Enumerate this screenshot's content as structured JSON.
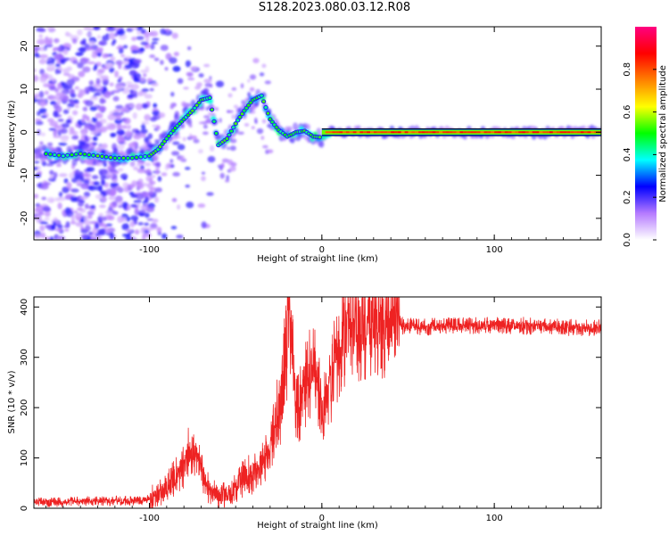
{
  "title": "S128.2023.080.03.12.R08",
  "chart_data": [
    {
      "type": "heatmap",
      "xlabel": "Height of straight line (km)",
      "ylabel": "Frequency (Hz)",
      "xlim": [
        -167,
        162
      ],
      "ylim": [
        -25,
        24.5
      ],
      "x_ticks": [
        -100,
        0,
        100
      ],
      "x_tick_labels": [
        "-100",
        "0",
        "100"
      ],
      "y_ticks": [
        -20,
        -10,
        0,
        10,
        20
      ],
      "y_tick_labels": [
        "-20",
        "-10",
        "0",
        "10",
        "20"
      ],
      "grid": false,
      "ridge": [
        [
          -160,
          -5
        ],
        [
          -150,
          -5.5
        ],
        [
          -140,
          -5
        ],
        [
          -130,
          -5.5
        ],
        [
          -120,
          -6
        ],
        [
          -110,
          -6
        ],
        [
          -100,
          -5.5
        ],
        [
          -95,
          -4
        ],
        [
          -90,
          -1.5
        ],
        [
          -85,
          1
        ],
        [
          -80,
          3
        ],
        [
          -75,
          5
        ],
        [
          -70,
          7.5
        ],
        [
          -65,
          8
        ],
        [
          -60,
          -3
        ],
        [
          -55,
          -1.5
        ],
        [
          -50,
          2
        ],
        [
          -45,
          5
        ],
        [
          -40,
          7.5
        ],
        [
          -35,
          8.5
        ],
        [
          -30,
          3
        ],
        [
          -25,
          0.5
        ],
        [
          -20,
          -1
        ],
        [
          -15,
          0
        ],
        [
          -10,
          0.3
        ],
        [
          -5,
          -1
        ],
        [
          0,
          -1.2
        ],
        [
          5,
          0
        ],
        [
          20,
          0
        ],
        [
          60,
          0
        ],
        [
          100,
          0
        ],
        [
          160,
          0
        ]
      ],
      "colorbar": {
        "label": "Normalized spectral amplitude",
        "range": [
          0,
          1
        ],
        "ticks": [
          0.0,
          0.2,
          0.4,
          0.6,
          0.8
        ],
        "tick_labels": [
          "0.0",
          "0.2",
          "0.4",
          "0.6",
          "0.8"
        ],
        "colors": [
          "#ffffff",
          "#b57aff",
          "#0000ff",
          "#00ffff",
          "#00ff00",
          "#ffff00",
          "#ff8000",
          "#ff0000",
          "#ff0080"
        ]
      }
    },
    {
      "type": "line",
      "xlabel": "Height of straight line (km)",
      "ylabel": "SNR (10 * v/v)",
      "xlim": [
        -167,
        162
      ],
      "ylim": [
        0,
        420
      ],
      "x_ticks": [
        -100,
        0,
        100
      ],
      "x_tick_labels": [
        "-100",
        "0",
        "100"
      ],
      "y_ticks": [
        0,
        100,
        200,
        300,
        400
      ],
      "y_tick_labels": [
        "0",
        "100",
        "200",
        "300",
        "400"
      ],
      "grid": false,
      "series": [
        {
          "color": "#ee2222",
          "x": [
            -167,
            -150,
            -130,
            -110,
            -100,
            -95,
            -90,
            -85,
            -80,
            -76,
            -72,
            -68,
            -65,
            -60,
            -55,
            -50,
            -45,
            -40,
            -35,
            -30,
            -27,
            -24,
            -22,
            -20,
            -19,
            -17,
            -15,
            -12,
            -10,
            -8,
            -5,
            -3,
            0,
            5,
            8,
            10,
            12,
            15,
            18,
            20,
            25,
            30,
            35,
            40,
            45,
            47,
            50,
            60,
            80,
            100,
            120,
            140,
            162
          ],
          "values": [
            12,
            12,
            15,
            15,
            18,
            28,
            45,
            60,
            80,
            120,
            95,
            60,
            35,
            25,
            30,
            45,
            60,
            70,
            80,
            110,
            160,
            220,
            260,
            350,
            420,
            300,
            200,
            210,
            240,
            260,
            280,
            260,
            190,
            230,
            300,
            320,
            340,
            360,
            355,
            365,
            370,
            372,
            375,
            378,
            380,
            360,
            362,
            360,
            362,
            365,
            362,
            360,
            358
          ]
        }
      ]
    }
  ]
}
